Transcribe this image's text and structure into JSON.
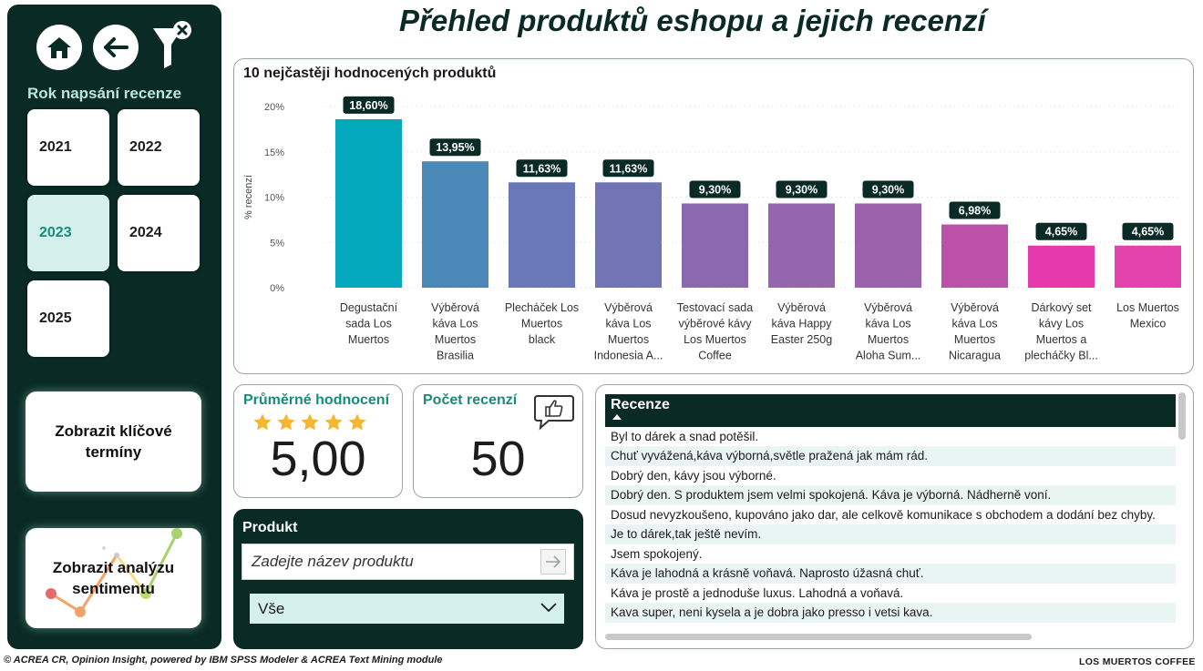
{
  "title": "Přehled produktů eshopu a jejich recenzí",
  "sidebar": {
    "nav": [
      {
        "icon": "home-icon"
      },
      {
        "icon": "back-arrow-icon"
      },
      {
        "icon": "clear-filter-icon"
      }
    ],
    "year_filter": {
      "title": "Rok napsání recenze",
      "years": [
        "2021",
        "2022",
        "2023",
        "2024",
        "2025"
      ],
      "selected": "2023"
    },
    "key_terms_button": "Zobrazit klíčové termíny",
    "sentiment_button": "Zobrazit analýzu sentimentu"
  },
  "chart": {
    "title": "10 nejčastěji hodnocených produktů"
  },
  "chart_data": {
    "type": "bar",
    "title": "10 nejčastěji hodnocených produktů",
    "ylabel": "% recenzí",
    "xlabel": "",
    "ylim": [
      0,
      20
    ],
    "yticks": [
      "0%",
      "5%",
      "10%",
      "15%",
      "20%"
    ],
    "grid": true,
    "categories": [
      "Degustační sada Los Muertos",
      "Výběrová káva Los Muertos Brasilia",
      "Plecháček Los Muertos black",
      "Výběrová káva Los Muertos Indonesia A...",
      "Testovací sada výběrové kávy Los Muertos Coffee",
      "Výběrová káva Happy Easter 250g",
      "Výběrová káva Los Muertos Aloha Sum...",
      "Výběrová káva Los Muertos Nicaragua",
      "Dárkový set kávy Los Muertos a plecháčky Bl...",
      "Los Muertos Mexico"
    ],
    "category_lines": [
      [
        "Degustační",
        "sada Los",
        "Muertos"
      ],
      [
        "Výběrová",
        "káva Los",
        "Muertos",
        "Brasilia"
      ],
      [
        "Plecháček Los",
        "Muertos",
        "black"
      ],
      [
        "Výběrová",
        "káva Los",
        "Muertos",
        "Indonesia A..."
      ],
      [
        "Testovací sada",
        "výběrové kávy",
        "Los Muertos",
        "Coffee"
      ],
      [
        "Výběrová",
        "káva Happy",
        "Easter 250g"
      ],
      [
        "Výběrová",
        "káva Los",
        "Muertos",
        "Aloha Sum..."
      ],
      [
        "Výběrová",
        "káva Los",
        "Muertos",
        "Nicaragua"
      ],
      [
        "Dárkový set",
        "kávy Los",
        "Muertos a",
        "plecháčky Bl..."
      ],
      [
        "Los Muertos",
        "Mexico"
      ]
    ],
    "values": [
      18.6,
      13.95,
      11.63,
      11.63,
      9.3,
      9.3,
      9.3,
      6.98,
      4.65,
      4.65
    ],
    "value_labels": [
      "18,60%",
      "13,95%",
      "11,63%",
      "11,63%",
      "9,30%",
      "9,30%",
      "9,30%",
      "6,98%",
      "4,65%",
      "4,65%"
    ],
    "colors": [
      "#04a9be",
      "#4a88b8",
      "#6a78b8",
      "#7374b5",
      "#8c68b1",
      "#9565ae",
      "#9c62ab",
      "#bc52a8",
      "#e63aac",
      "#e443ae"
    ]
  },
  "kpis": {
    "avg_rating": {
      "title": "Průměrné hodnocení",
      "value": "5,00",
      "stars": 5,
      "star_color": "#f5b730"
    },
    "review_count": {
      "title": "Počet recenzí",
      "value": "50",
      "icon": "thumbs-up-speech-icon"
    }
  },
  "product_filter": {
    "title": "Produkt",
    "search_placeholder": "Zadejte název produktu",
    "selected": "Vše"
  },
  "reviews": {
    "header": "Recenze",
    "rows": [
      "Byl to dárek a snad potěšil.",
      "Chuť vyvážená,káva výborná,světle pražená jak mám rád.",
      "Dobrý den, kávy jsou výborné.",
      "Dobrý den. S produktem jsem velmi spokojená. Káva je výborná. Nádherně voní.",
      "Dosud nevyzkoušeno, kupováno jako dar, ale celkově komunikace s obchodem a dodání bez chyby.",
      "Je to dárek,tak ještě nevím.",
      "Jsem spokojený.",
      "Káva je lahodná a krásně voňavá. Naprosto úžasná chuť.",
      "Káva je prostě a jednoduše luxus. Lahodná a voňavá.",
      "Kava super, neni kysela a je dobra jako presso i vetsi kava."
    ]
  },
  "footer": "© ACREA CR, Opinion Insight, powered by IBM SPSS Modeler & ACREA Text Mining module",
  "brand": "LOS MUERTOS  COFFEE",
  "colors": {
    "dark": "#0a2a25",
    "accent": "#168c79",
    "selected_tile": "#d5efec"
  }
}
